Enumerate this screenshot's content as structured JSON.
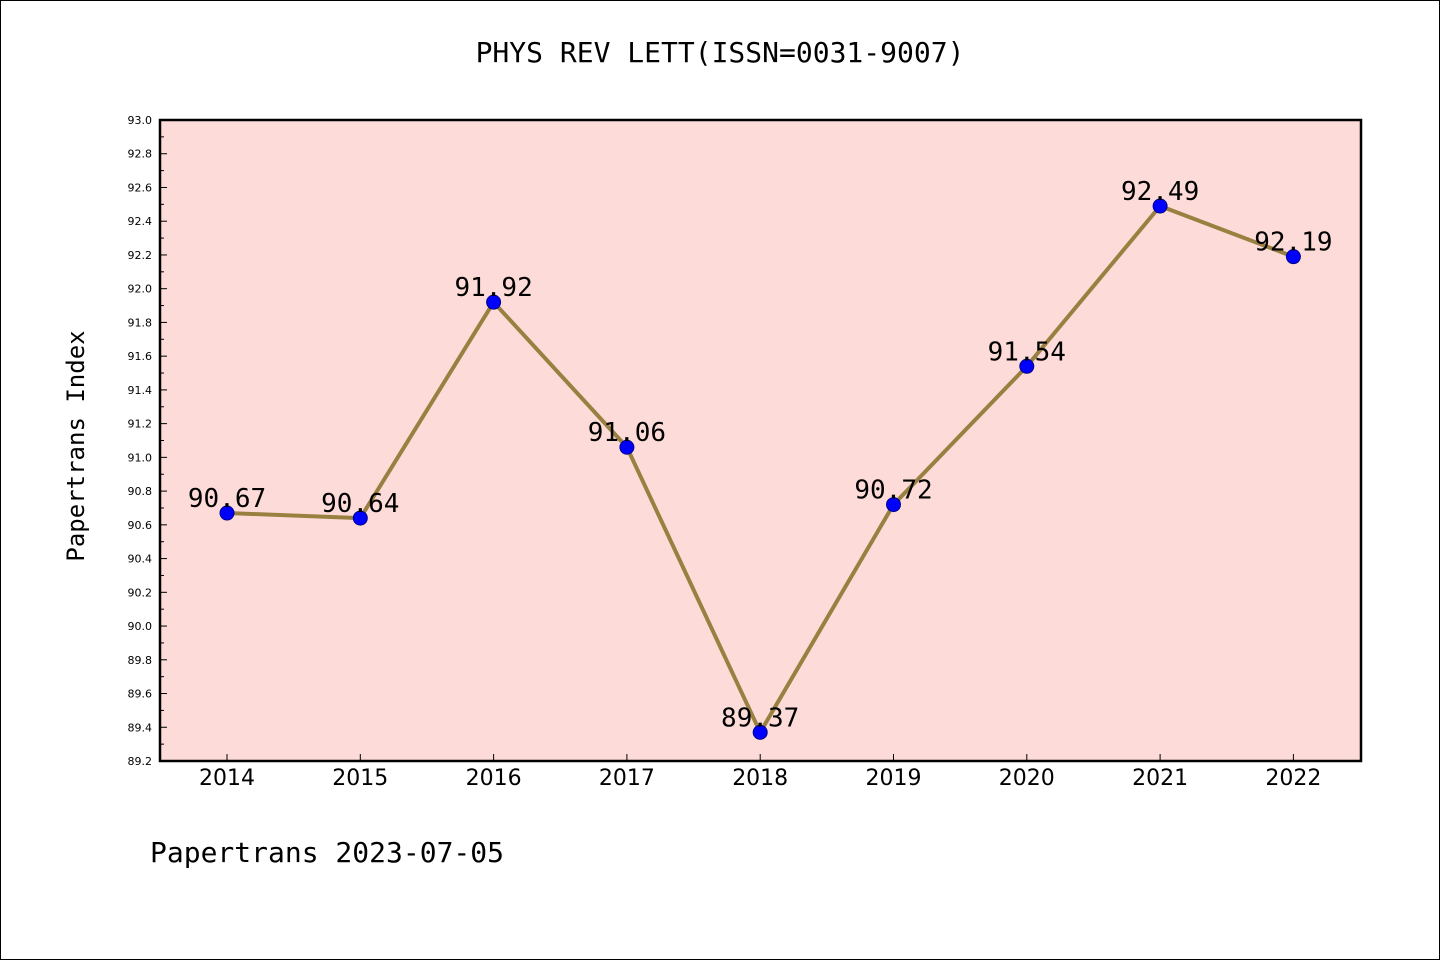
{
  "chart_title": "PHYS REV LETT(ISSN=0031-9007)",
  "footer_note": "Papertrans 2023-07-05",
  "colors": {
    "plot_background": "#fddbd8",
    "line": "#9a8040",
    "marker_fill": "#0000ff",
    "marker_edge": "#00008b"
  },
  "chart_data": {
    "type": "line",
    "title": "PHYS REV LETT(ISSN=0031-9007)",
    "xlabel": "",
    "ylabel": "Papertrans Index",
    "categories": [
      "2014",
      "2015",
      "2016",
      "2017",
      "2018",
      "2019",
      "2020",
      "2021",
      "2022"
    ],
    "series": [
      {
        "values": [
          90.67,
          90.64,
          91.92,
          91.06,
          89.37,
          90.72,
          91.54,
          92.49,
          92.19
        ],
        "labels": [
          "90.67",
          "90.64",
          "91.92",
          "91.06",
          "89.37",
          "90.72",
          "91.54",
          "92.49",
          "92.19"
        ]
      }
    ],
    "ylim": [
      89.2,
      93.0
    ],
    "yticks": [
      "89.2",
      "89.4",
      "89.6",
      "89.8",
      "90.0",
      "90.2",
      "90.4",
      "90.6",
      "90.8",
      "91.0",
      "91.2",
      "91.4",
      "91.6",
      "91.8",
      "92.0",
      "92.2",
      "92.4",
      "92.6",
      "92.8",
      "93.0"
    ],
    "grid": false,
    "legend": "none"
  }
}
